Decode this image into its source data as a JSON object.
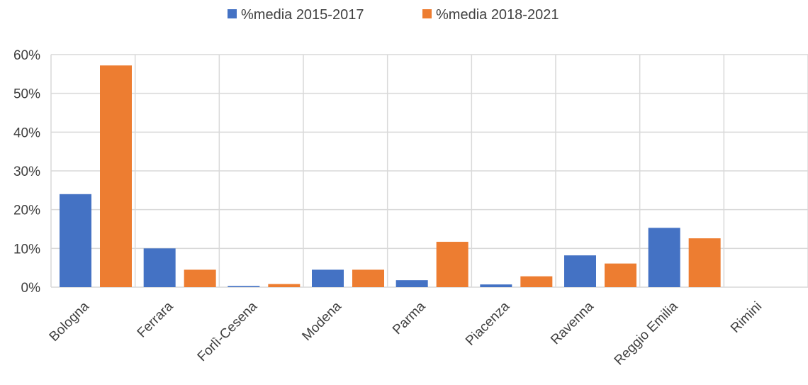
{
  "chart_data": {
    "type": "bar",
    "categories": [
      "Bologna",
      "Ferrara",
      "Forlì-Cesena",
      "Modena",
      "Parma",
      "Piacenza",
      "Ravenna",
      "Reggio Emilia",
      "Rimini"
    ],
    "series": [
      {
        "name": "%media 2015-2017",
        "color": "#4472C4",
        "values": [
          24,
          10,
          0.3,
          4.5,
          1.8,
          0.7,
          8.2,
          15.3,
          0
        ]
      },
      {
        "name": "%media 2018-2021",
        "color": "#ED7D31",
        "values": [
          57.2,
          4.5,
          0.8,
          4.5,
          11.7,
          2.8,
          6.1,
          12.6,
          0
        ]
      }
    ],
    "yticks": [
      "0%",
      "10%",
      "20%",
      "30%",
      "40%",
      "50%",
      "60%"
    ],
    "ylim": [
      0,
      60
    ],
    "grid": true,
    "legend_position": "top"
  }
}
